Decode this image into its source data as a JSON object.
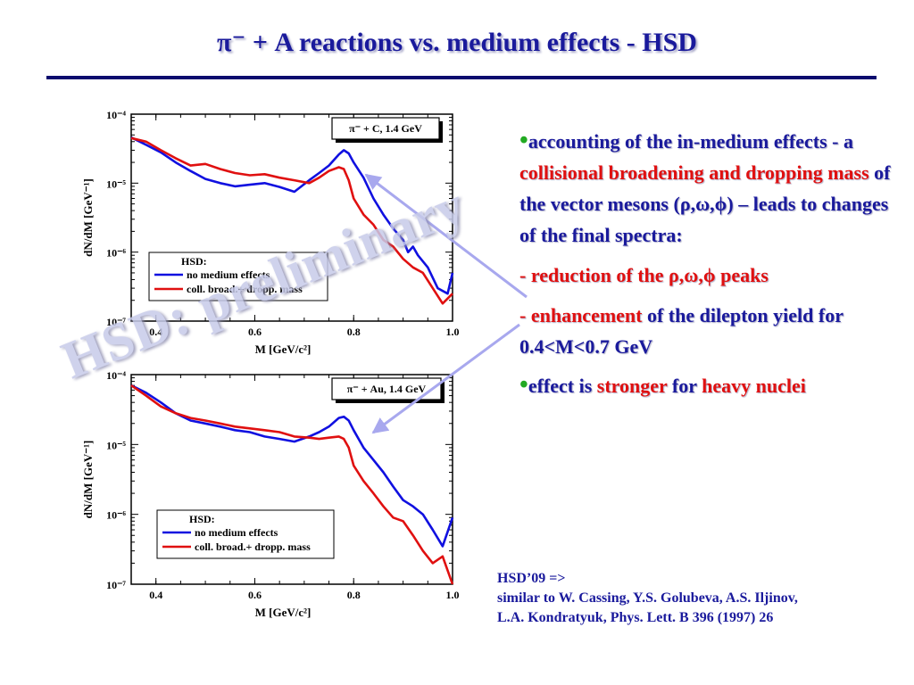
{
  "slide": {
    "title": "π⁻ + A reactions vs. medium effects - HSD",
    "watermark": "HSD: preliminary",
    "bullets": {
      "b1_a": "accounting of the in-medium effects - a ",
      "b1_red": "collisional broadening and dropping mass",
      "b1_b": " of the vector mesons (ρ,ω,ϕ) – leads to changes of the final spectra:",
      "dash": "-",
      "b2_red": "reduction of the ρ,ω,ϕ peaks",
      "b3_red": "enhancement",
      "b3_b": " of the dilepton yield for 0.4<M<0.7 GeV",
      "b4_a": "effect is ",
      "b4_red1": "stronger",
      "b4_b": " for ",
      "b4_red2": "heavy nuclei"
    },
    "reference": {
      "line1": "HSD’09   =>",
      "line2": "similar to W. Cassing, Y.S. Golubeva, A.S. Iljinov,",
      "line3": "L.A. Kondratyuk, Phys. Lett. B 396 (1997) 26"
    },
    "colors": {
      "title": "#1a1a9c",
      "blue_series": "#1010e0",
      "red_series": "#e01010",
      "arrow": "#a8a8ee"
    }
  },
  "chart_data": [
    {
      "type": "line",
      "box_label": "π⁻ + C, 1.4 GeV",
      "xlabel": "M [GeV/c²]",
      "ylabel": "dN/dM  [GeV⁻¹]",
      "xlim": [
        0.35,
        1.0
      ],
      "ylim": [
        1e-07,
        0.0001
      ],
      "yscale": "log",
      "xticks": [
        "0.4",
        "0.6",
        "0.8",
        "1.0"
      ],
      "yticks": [
        "10⁻⁴",
        "10⁻⁵",
        "10⁻⁶",
        "10⁻⁷"
      ],
      "legend_title": "HSD:",
      "legend_position": "bottom-left",
      "series": [
        {
          "name": "no medium effects",
          "color": "#1010e0",
          "x": [
            0.35,
            0.38,
            0.41,
            0.44,
            0.47,
            0.5,
            0.53,
            0.56,
            0.59,
            0.62,
            0.65,
            0.68,
            0.71,
            0.73,
            0.75,
            0.77,
            0.78,
            0.79,
            0.8,
            0.82,
            0.84,
            0.86,
            0.88,
            0.9,
            0.91,
            0.92,
            0.93,
            0.95,
            0.97,
            0.99,
            1.0
          ],
          "y": [
            4.6e-05,
            3.6e-05,
            2.8e-05,
            2e-05,
            1.5e-05,
            1.15e-05,
            1e-05,
            9e-06,
            9.5e-06,
            1e-05,
            8.8e-06,
            7.5e-06,
            1.1e-05,
            1.4e-05,
            1.8e-05,
            2.6e-05,
            3e-05,
            2.7e-05,
            2e-05,
            1.2e-05,
            6e-06,
            3.5e-06,
            2.2e-06,
            1.5e-06,
            1e-06,
            1.2e-06,
            9e-07,
            6e-07,
            3e-07,
            2.5e-07,
            5e-07
          ]
        },
        {
          "name": "coll. broad.+ dropp. mass",
          "color": "#e01010",
          "x": [
            0.35,
            0.38,
            0.41,
            0.44,
            0.47,
            0.5,
            0.53,
            0.56,
            0.59,
            0.62,
            0.65,
            0.68,
            0.71,
            0.73,
            0.75,
            0.77,
            0.78,
            0.79,
            0.8,
            0.82,
            0.84,
            0.86,
            0.88,
            0.9,
            0.92,
            0.94,
            0.96,
            0.98,
            1.0
          ],
          "y": [
            4.5e-05,
            4e-05,
            3e-05,
            2.3e-05,
            1.8e-05,
            1.9e-05,
            1.6e-05,
            1.4e-05,
            1.3e-05,
            1.35e-05,
            1.2e-05,
            1.1e-05,
            1e-05,
            1.2e-05,
            1.5e-05,
            1.7e-05,
            1.6e-05,
            1.1e-05,
            6e-06,
            3.5e-06,
            2.5e-06,
            1.5e-06,
            1.2e-06,
            8e-07,
            6e-07,
            5e-07,
            3e-07,
            1.8e-07,
            2.5e-07
          ]
        }
      ]
    },
    {
      "type": "line",
      "box_label": "π⁻ + Au, 1.4 GeV",
      "xlabel": "M [GeV/c²]",
      "ylabel": "dN/dM  [GeV⁻¹]",
      "xlim": [
        0.35,
        1.0
      ],
      "ylim": [
        1e-07,
        0.0001
      ],
      "yscale": "log",
      "xticks": [
        "0.4",
        "0.6",
        "0.8",
        "1.0"
      ],
      "yticks": [
        "10⁻⁴",
        "10⁻⁵",
        "10⁻⁶",
        "10⁻⁷"
      ],
      "legend_title": "HSD:",
      "legend_position": "bottom-left",
      "series": [
        {
          "name": "no medium effects",
          "color": "#1010e0",
          "x": [
            0.35,
            0.38,
            0.41,
            0.44,
            0.47,
            0.5,
            0.53,
            0.56,
            0.59,
            0.62,
            0.65,
            0.68,
            0.71,
            0.73,
            0.75,
            0.77,
            0.78,
            0.79,
            0.8,
            0.82,
            0.84,
            0.86,
            0.88,
            0.9,
            0.92,
            0.94,
            0.96,
            0.98,
            1.0
          ],
          "y": [
            7e-05,
            5.5e-05,
            4e-05,
            2.8e-05,
            2.2e-05,
            2e-05,
            1.8e-05,
            1.6e-05,
            1.5e-05,
            1.3e-05,
            1.2e-05,
            1.1e-05,
            1.3e-05,
            1.5e-05,
            1.8e-05,
            2.4e-05,
            2.5e-05,
            2.2e-05,
            1.6e-05,
            9e-06,
            6e-06,
            4e-06,
            2.5e-06,
            1.6e-06,
            1.3e-06,
            1e-06,
            6e-07,
            3.5e-07,
            9e-07
          ]
        },
        {
          "name": "coll. broad.+ dropp. mass",
          "color": "#e01010",
          "x": [
            0.35,
            0.38,
            0.41,
            0.44,
            0.47,
            0.5,
            0.53,
            0.56,
            0.59,
            0.62,
            0.65,
            0.68,
            0.71,
            0.73,
            0.75,
            0.77,
            0.78,
            0.79,
            0.8,
            0.82,
            0.84,
            0.86,
            0.88,
            0.9,
            0.92,
            0.94,
            0.96,
            0.98,
            1.0
          ],
          "y": [
            7e-05,
            5e-05,
            3.5e-05,
            2.8e-05,
            2.4e-05,
            2.2e-05,
            2e-05,
            1.8e-05,
            1.7e-05,
            1.6e-05,
            1.5e-05,
            1.3e-05,
            1.25e-05,
            1.2e-05,
            1.25e-05,
            1.3e-05,
            1.2e-05,
            9e-06,
            5e-06,
            3e-06,
            2e-06,
            1.3e-06,
            9e-07,
            8e-07,
            5e-07,
            3e-07,
            2e-07,
            2.5e-07,
            1e-07
          ]
        }
      ]
    }
  ]
}
